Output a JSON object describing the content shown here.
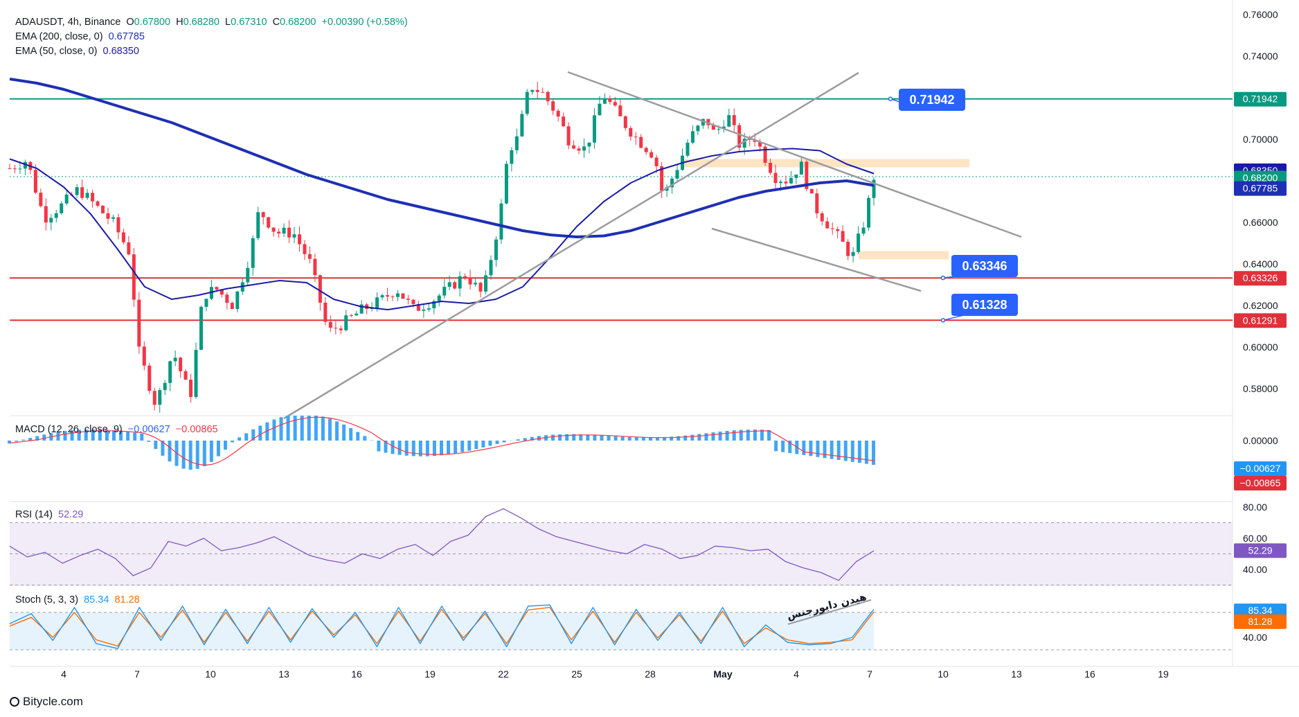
{
  "header": {
    "symbol": "ADAUSDT, 4h, Binance",
    "open_label": "O",
    "open": "0.67800",
    "high_label": "H",
    "high": "0.68280",
    "low_label": "L",
    "low": "0.67310",
    "close_label": "C",
    "close": "0.68200",
    "change": "+0.00390 (+0.58%)"
  },
  "indicators": {
    "ema200": {
      "label": "EMA (200, close, 0)",
      "value": "0.67785",
      "color": "#1e2fb5"
    },
    "ema50": {
      "label": "EMA (50, close, 0)",
      "value": "0.68350",
      "color": "#1a1aa8"
    },
    "macd": {
      "label": "MACD (12, 26, close, 9)",
      "value1": "−0.00627",
      "value2": "−0.00865",
      "tags": [
        "0.00000",
        "−0.00627",
        "−0.00865"
      ]
    },
    "rsi": {
      "label": "RSI (14)",
      "value": "52.29",
      "ticks": [
        "80.00",
        "60.00",
        "40.00"
      ]
    },
    "stoch": {
      "label": "Stoch (5, 3, 3)",
      "value1": "85.34",
      "value2": "81.28",
      "ticks": [
        "40.00"
      ]
    }
  },
  "annotations": {
    "callout_top": "0.71942",
    "callout_mid": "0.63346",
    "callout_low": "0.61328",
    "divergence_text": "هیدن دایورجنس"
  },
  "price_tags": {
    "resistance": "0.71942",
    "ema50": "0.68350",
    "last": "0.68200",
    "ema200": "0.67785",
    "support1": "0.63326",
    "support2": "0.61291"
  },
  "watermark": "Bitycle.com",
  "colors": {
    "up": "#089981",
    "down": "#f23645",
    "green_line": "#089981",
    "red_line": "#e0303a",
    "trend": "#9a9ba1",
    "zone": "#fde4c3",
    "callout": "#2962ff"
  },
  "chart_data": {
    "type": "candlestick",
    "title": "ADAUSDT, 4h, Binance",
    "ylim": [
      0.567,
      0.767
    ],
    "y_ticks": [
      "0.76000",
      "0.74000",
      "0.72000",
      "0.70000",
      "0.68000",
      "0.66000",
      "0.64000",
      "0.62000",
      "0.60000",
      "0.58000"
    ],
    "x_ticks": [
      "4",
      "7",
      "10",
      "13",
      "16",
      "19",
      "22",
      "25",
      "28",
      "May",
      "4",
      "7",
      "10",
      "13",
      "16",
      "19"
    ],
    "candle_count": 168,
    "horizontal_levels": [
      {
        "value": 0.71942,
        "color": "green"
      },
      {
        "value": 0.63326,
        "color": "red"
      },
      {
        "value": 0.61291,
        "color": "red"
      }
    ],
    "ema200_points": [
      0.729,
      0.727,
      0.724,
      0.72,
      0.716,
      0.712,
      0.708,
      0.703,
      0.698,
      0.693,
      0.688,
      0.683,
      0.679,
      0.675,
      0.671,
      0.668,
      0.665,
      0.662,
      0.659,
      0.656,
      0.654,
      0.653,
      0.6535,
      0.656,
      0.66,
      0.664,
      0.668,
      0.672,
      0.675,
      0.677,
      0.679,
      0.68,
      0.6778
    ],
    "ema50_points": [
      0.6905,
      0.686,
      0.677,
      0.664,
      0.647,
      0.629,
      0.623,
      0.625,
      0.628,
      0.63,
      0.632,
      0.631,
      0.623,
      0.6195,
      0.618,
      0.62,
      0.622,
      0.621,
      0.623,
      0.629,
      0.643,
      0.658,
      0.67,
      0.679,
      0.685,
      0.689,
      0.692,
      0.694,
      0.695,
      0.6955,
      0.6945,
      0.688,
      0.6835
    ],
    "rsi_points": [
      55,
      48,
      51,
      44,
      49,
      53,
      47,
      36,
      41,
      58,
      55,
      60,
      52,
      54,
      57,
      61,
      55,
      49,
      46,
      44,
      50,
      47,
      53,
      56,
      49,
      58,
      62,
      74,
      79,
      73,
      66,
      61,
      58,
      55,
      52,
      50,
      56,
      53,
      47,
      49,
      55,
      54,
      52,
      53,
      45,
      41,
      38,
      33,
      45,
      52
    ],
    "stoch_k_points": [
      62,
      78,
      35,
      88,
      30,
      22,
      88,
      35,
      90,
      28,
      85,
      30,
      88,
      32,
      86,
      40,
      80,
      25,
      88,
      30,
      90,
      35,
      82,
      25,
      90,
      92,
      30,
      88,
      28,
      85,
      35,
      80,
      30,
      88,
      25,
      60,
      32,
      28,
      30,
      40,
      85
    ],
    "stoch_d_points": [
      58,
      72,
      40,
      80,
      36,
      26,
      80,
      40,
      84,
      32,
      80,
      34,
      82,
      36,
      82,
      44,
      76,
      30,
      82,
      34,
      85,
      39,
      78,
      30,
      84,
      88,
      36,
      82,
      32,
      80,
      39,
      76,
      34,
      82,
      30,
      55,
      36,
      30,
      32,
      36,
      81
    ]
  }
}
